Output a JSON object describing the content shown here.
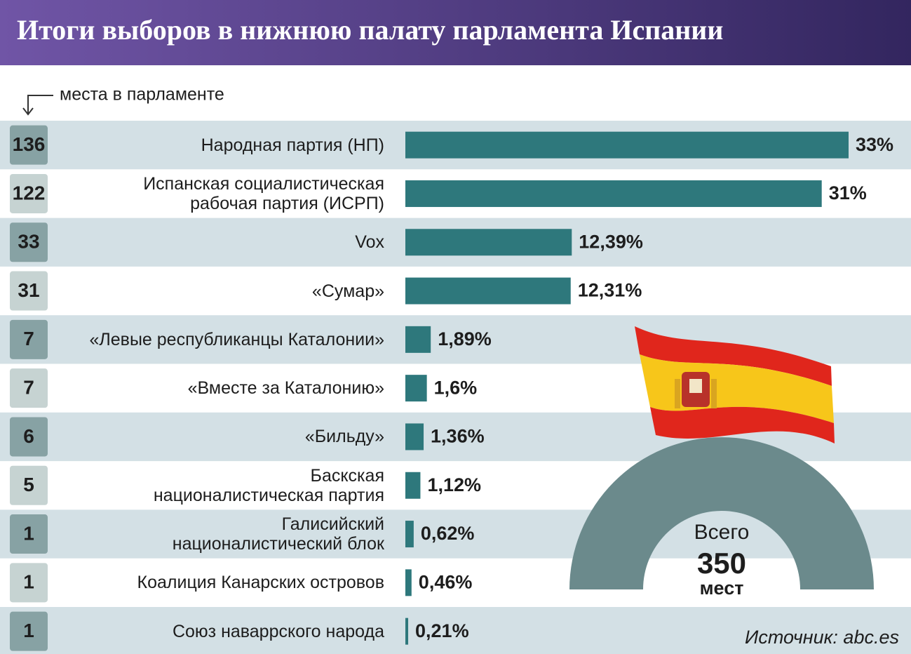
{
  "chart_data": {
    "type": "bar",
    "title": "Итоги выборов в нижнюю палату парламента Испании",
    "seats_label": "места в парламенте",
    "categories": [
      "Народная партия (НП)",
      "Испанская социалистическая\nрабочая партия (ИСРП)",
      "Vox",
      "«Сумар»",
      "«Левые республиканцы Каталонии»",
      "«Вместе за Каталонию»",
      "«Бильду»",
      "Баскская\nнационалистическая партия",
      "Галисийский\nнационалистический блок",
      "Коалиция Канарских островов",
      "Союз наваррского народа"
    ],
    "seats": [
      "136",
      "122",
      "33",
      "31",
      "7",
      "7",
      "6",
      "5",
      "1",
      "1",
      "1"
    ],
    "values": [
      33,
      31,
      12.39,
      12.31,
      1.89,
      1.6,
      1.36,
      1.12,
      0.62,
      0.46,
      0.21
    ],
    "value_labels": [
      "33%",
      "31%",
      "12,39%",
      "12,31%",
      "1,89%",
      "1,6%",
      "1,36%",
      "1,12%",
      "0,62%",
      "0,46%",
      "0,21%"
    ],
    "color": "#2e787c",
    "total_label": "Всего",
    "total": "350",
    "total_unit": "мест",
    "source": "Источник: abc.es"
  }
}
